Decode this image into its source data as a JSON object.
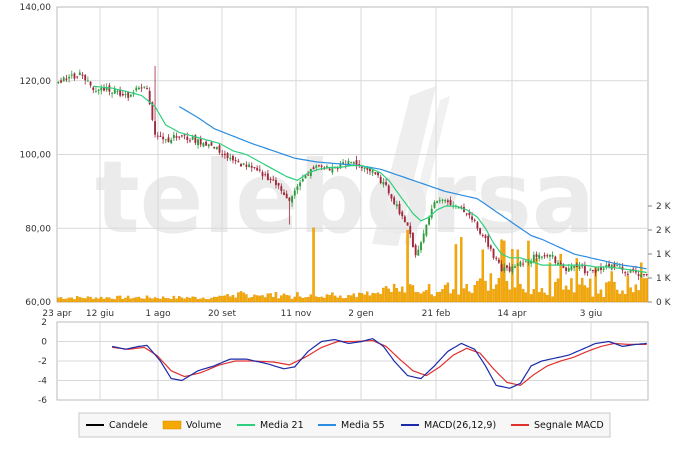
{
  "chart_data": {
    "type": "candlestick",
    "watermark": "teleborsa",
    "price_axis": {
      "ylim": [
        60,
        140
      ],
      "ticks": [
        "60,00",
        "80,00",
        "100,00",
        "120,00",
        "140,00"
      ],
      "tick_values": [
        60,
        80,
        100,
        120,
        140
      ]
    },
    "volume_axis": {
      "ticks": [
        "0 K",
        "1 K",
        "1 K",
        "2 K",
        "2 K"
      ],
      "tick_values": [
        0,
        0.5,
        1.0,
        1.5,
        2.0
      ],
      "max": 2.0
    },
    "macd_axis": {
      "ylim": [
        -6,
        2
      ],
      "ticks": [
        "2",
        "0",
        "-2",
        "-4",
        "-6"
      ],
      "tick_values": [
        2,
        0,
        -2,
        -4,
        -6
      ]
    },
    "x_labels": [
      "23 apr",
      "12 giu",
      "1 ago",
      "20 set",
      "11 nov",
      "2 gen",
      "21 feb",
      "14 apr",
      "3 giu"
    ],
    "legend": [
      {
        "key": "candles",
        "label": "Candele",
        "color": "#000000"
      },
      {
        "key": "volume",
        "label": "Volume",
        "color": "#f5a800"
      },
      {
        "key": "ma21",
        "label": "Media 21",
        "color": "#2ecf7e"
      },
      {
        "key": "ma55",
        "label": "Media 55",
        "color": "#2b8de0"
      },
      {
        "key": "macd",
        "label": "MACD(26,12,9)",
        "color": "#1a2aa8"
      },
      {
        "key": "signal",
        "label": "Segnale MACD",
        "color": "#e03030"
      }
    ],
    "colors": {
      "up": "#2e9c3a",
      "down": "#a0283c",
      "grid": "#d9d9d9",
      "frame": "#bbbbbb"
    },
    "close_anchors": [
      [
        0,
        120
      ],
      [
        5,
        121
      ],
      [
        9,
        122
      ],
      [
        13,
        117
      ],
      [
        17,
        118
      ],
      [
        22,
        117
      ],
      [
        26,
        116
      ],
      [
        30,
        118
      ],
      [
        33,
        118
      ],
      [
        36,
        106
      ],
      [
        40,
        104
      ],
      [
        45,
        105
      ],
      [
        50,
        104
      ],
      [
        55,
        103
      ],
      [
        60,
        101
      ],
      [
        65,
        98
      ],
      [
        70,
        97
      ],
      [
        75,
        95
      ],
      [
        80,
        93
      ],
      [
        83,
        90
      ],
      [
        86,
        88
      ],
      [
        89,
        91
      ],
      [
        93,
        95
      ],
      [
        97,
        97
      ],
      [
        101,
        96
      ],
      [
        105,
        97
      ],
      [
        109,
        98
      ],
      [
        113,
        97
      ],
      [
        117,
        95
      ],
      [
        120,
        93
      ],
      [
        123,
        90
      ],
      [
        126,
        86
      ],
      [
        129,
        82
      ],
      [
        131,
        78
      ],
      [
        133,
        73
      ],
      [
        135,
        76
      ],
      [
        137,
        81
      ],
      [
        139,
        86
      ],
      [
        142,
        88
      ],
      [
        145,
        87
      ],
      [
        149,
        86
      ],
      [
        153,
        84
      ],
      [
        156,
        80
      ],
      [
        159,
        77
      ],
      [
        162,
        72
      ],
      [
        165,
        69
      ],
      [
        169,
        69
      ],
      [
        174,
        71
      ],
      [
        179,
        73
      ],
      [
        184,
        72
      ],
      [
        189,
        69
      ],
      [
        193,
        70
      ],
      [
        197,
        68
      ],
      [
        201,
        69
      ],
      [
        205,
        70
      ],
      [
        209,
        69
      ],
      [
        213,
        68
      ],
      [
        217,
        67
      ],
      [
        219,
        68
      ]
    ],
    "ma21_anchors": [
      [
        13,
        118.5
      ],
      [
        20,
        118
      ],
      [
        26,
        117
      ],
      [
        31,
        116
      ],
      [
        36,
        113
      ],
      [
        40,
        108
      ],
      [
        45,
        106
      ],
      [
        50,
        105
      ],
      [
        55,
        104
      ],
      [
        60,
        103
      ],
      [
        65,
        101
      ],
      [
        70,
        100
      ],
      [
        75,
        98
      ],
      [
        80,
        96
      ],
      [
        85,
        94
      ],
      [
        89,
        93
      ],
      [
        93,
        95
      ],
      [
        97,
        96
      ],
      [
        101,
        96.5
      ],
      [
        105,
        96.5
      ],
      [
        109,
        97
      ],
      [
        113,
        97
      ],
      [
        117,
        96
      ],
      [
        120,
        95
      ],
      [
        123,
        93
      ],
      [
        126,
        90
      ],
      [
        129,
        87
      ],
      [
        132,
        84
      ],
      [
        135,
        82
      ],
      [
        138,
        83
      ],
      [
        141,
        85
      ],
      [
        144,
        86
      ],
      [
        148,
        86
      ],
      [
        152,
        85
      ],
      [
        156,
        83
      ],
      [
        159,
        80
      ],
      [
        162,
        76
      ],
      [
        165,
        73
      ],
      [
        168,
        72
      ],
      [
        172,
        72
      ],
      [
        176,
        71
      ],
      [
        180,
        70
      ],
      [
        184,
        70
      ],
      [
        188,
        70
      ],
      [
        192,
        70
      ],
      [
        196,
        70
      ],
      [
        200,
        69.5
      ],
      [
        205,
        69.5
      ],
      [
        210,
        69
      ],
      [
        215,
        68.5
      ],
      [
        219,
        68
      ]
    ],
    "ma55_anchors": [
      [
        45,
        113
      ],
      [
        52,
        110
      ],
      [
        58,
        107
      ],
      [
        65,
        105
      ],
      [
        72,
        103
      ],
      [
        80,
        101
      ],
      [
        88,
        99
      ],
      [
        96,
        98
      ],
      [
        104,
        97.5
      ],
      [
        112,
        97
      ],
      [
        120,
        96
      ],
      [
        128,
        94
      ],
      [
        136,
        92
      ],
      [
        144,
        90
      ],
      [
        150,
        89
      ],
      [
        156,
        88
      ],
      [
        160,
        86
      ],
      [
        164,
        84
      ],
      [
        168,
        82
      ],
      [
        172,
        80
      ],
      [
        176,
        78
      ],
      [
        180,
        77
      ],
      [
        186,
        75
      ],
      [
        192,
        73
      ],
      [
        198,
        72
      ],
      [
        204,
        71
      ],
      [
        210,
        70
      ],
      [
        215,
        69.5
      ],
      [
        219,
        69
      ]
    ],
    "macd_anchors": [
      [
        20,
        -0.5
      ],
      [
        25,
        -0.8
      ],
      [
        30,
        -0.5
      ],
      [
        33,
        -0.4
      ],
      [
        38,
        -2.0
      ],
      [
        42,
        -3.8
      ],
      [
        46,
        -4.0
      ],
      [
        52,
        -3.0
      ],
      [
        58,
        -2.5
      ],
      [
        64,
        -1.8
      ],
      [
        70,
        -1.8
      ],
      [
        78,
        -2.3
      ],
      [
        84,
        -2.8
      ],
      [
        88,
        -2.6
      ],
      [
        93,
        -1.0
      ],
      [
        98,
        0.0
      ],
      [
        103,
        0.2
      ],
      [
        108,
        -0.2
      ],
      [
        113,
        0.0
      ],
      [
        117,
        0.3
      ],
      [
        121,
        -0.5
      ],
      [
        125,
        -2.0
      ],
      [
        130,
        -3.5
      ],
      [
        135,
        -3.8
      ],
      [
        140,
        -2.5
      ],
      [
        145,
        -1.0
      ],
      [
        150,
        -0.2
      ],
      [
        155,
        -0.8
      ],
      [
        159,
        -2.5
      ],
      [
        163,
        -4.5
      ],
      [
        168,
        -4.8
      ],
      [
        172,
        -4.3
      ],
      [
        176,
        -2.5
      ],
      [
        180,
        -2.0
      ],
      [
        185,
        -1.7
      ],
      [
        190,
        -1.4
      ],
      [
        195,
        -0.8
      ],
      [
        200,
        -0.2
      ],
      [
        205,
        0.0
      ],
      [
        210,
        -0.5
      ],
      [
        215,
        -0.3
      ],
      [
        219,
        -0.2
      ]
    ],
    "signal_anchors": [
      [
        20,
        -0.6
      ],
      [
        26,
        -0.8
      ],
      [
        32,
        -0.6
      ],
      [
        37,
        -1.5
      ],
      [
        42,
        -3.0
      ],
      [
        47,
        -3.6
      ],
      [
        53,
        -3.2
      ],
      [
        60,
        -2.4
      ],
      [
        66,
        -2.0
      ],
      [
        72,
        -2.0
      ],
      [
        80,
        -2.1
      ],
      [
        86,
        -2.4
      ],
      [
        92,
        -1.6
      ],
      [
        98,
        -0.6
      ],
      [
        104,
        0.0
      ],
      [
        110,
        0.0
      ],
      [
        117,
        0.1
      ],
      [
        122,
        -0.5
      ],
      [
        127,
        -1.8
      ],
      [
        132,
        -3.0
      ],
      [
        137,
        -3.5
      ],
      [
        142,
        -2.6
      ],
      [
        147,
        -1.4
      ],
      [
        152,
        -0.7
      ],
      [
        157,
        -1.2
      ],
      [
        162,
        -2.8
      ],
      [
        167,
        -4.2
      ],
      [
        172,
        -4.5
      ],
      [
        177,
        -3.4
      ],
      [
        182,
        -2.5
      ],
      [
        187,
        -2.0
      ],
      [
        192,
        -1.6
      ],
      [
        197,
        -1.0
      ],
      [
        202,
        -0.5
      ],
      [
        207,
        -0.2
      ],
      [
        212,
        -0.3
      ],
      [
        217,
        -0.3
      ],
      [
        219,
        -0.3
      ]
    ]
  }
}
